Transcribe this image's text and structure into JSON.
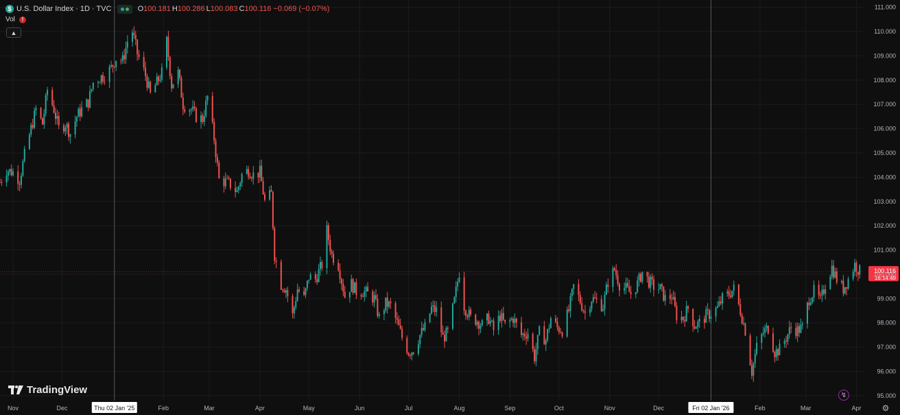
{
  "legend": {
    "symbol_icon": "dollar-sign-icon",
    "symbol_glyph": "$",
    "title": "U.S. Dollar Index · 1D · TVC",
    "open_key": "O",
    "open": "100.181",
    "high_key": "H",
    "high": "100.286",
    "low_key": "L",
    "low": "100.083",
    "close_key": "C",
    "close": "100.116",
    "change": "−0.069 (−0.07%)"
  },
  "volume": {
    "label": "Vol",
    "warning_icon": "warning-icon",
    "warning_glyph": "!"
  },
  "brand": {
    "name": "TradingView",
    "icon": "tradingview-logo-icon"
  },
  "price_tag": {
    "value": "100.116",
    "countdown": "16:14:49",
    "color": "#f23645"
  },
  "crosshair_labels": [
    "Thu 02 Jan '25",
    "Fri 02 Jan '26"
  ],
  "colors": {
    "up": "#26a69a",
    "down": "#ef5350",
    "background": "#0f0f0f",
    "grid": "#1c1c1c"
  },
  "chart_data": {
    "type": "candlestick",
    "symbol": "U.S. Dollar Index",
    "interval": "1D",
    "y_axis": {
      "range": [
        94.8,
        111.3
      ],
      "ticks": [
        "95.000",
        "96.000",
        "97.000",
        "98.000",
        "99.000",
        "100.000",
        "101.000",
        "102.000",
        "103.000",
        "104.000",
        "105.000",
        "106.000",
        "107.000",
        "108.000",
        "109.000",
        "110.000",
        "111.000"
      ]
    },
    "x_axis": {
      "start": "2024-10-24",
      "end": "2026-04-05",
      "ticks": [
        {
          "label": "Nov",
          "date": "2024-11-01"
        },
        {
          "label": "Dec",
          "date": "2024-12-01"
        },
        {
          "label": "Feb",
          "date": "2025-02-01"
        },
        {
          "label": "Mar",
          "date": "2025-03-01"
        },
        {
          "label": "Apr",
          "date": "2025-04-01"
        },
        {
          "label": "May",
          "date": "2025-05-01"
        },
        {
          "label": "Jun",
          "date": "2025-06-01"
        },
        {
          "label": "Jul",
          "date": "2025-07-01"
        },
        {
          "label": "Aug",
          "date": "2025-08-01"
        },
        {
          "label": "Sep",
          "date": "2025-09-01"
        },
        {
          "label": "Oct",
          "date": "2025-10-01"
        },
        {
          "label": "Nov",
          "date": "2025-11-01"
        },
        {
          "label": "Dec",
          "date": "2025-12-01"
        },
        {
          "label": "Feb",
          "date": "2026-02-01"
        },
        {
          "label": "Mar",
          "date": "2026-03-01"
        },
        {
          "label": "Apr",
          "date": "2026-04-01"
        }
      ]
    },
    "verticals": [
      "2025-01-02",
      "2026-01-02"
    ],
    "last_price": 100.116,
    "close_path": [
      [
        "2024-10-24",
        103.8
      ],
      [
        "2024-10-28",
        104.3
      ],
      [
        "2024-11-01",
        104.2
      ],
      [
        "2024-11-05",
        103.9
      ],
      [
        "2024-11-08",
        104.9
      ],
      [
        "2024-11-12",
        106.0
      ],
      [
        "2024-11-15",
        106.8
      ],
      [
        "2024-11-19",
        106.2
      ],
      [
        "2024-11-22",
        107.6
      ],
      [
        "2024-11-26",
        106.8
      ],
      [
        "2024-11-29",
        106.0
      ],
      [
        "2024-12-03",
        106.2
      ],
      [
        "2024-12-06",
        105.8
      ],
      [
        "2024-12-10",
        106.5
      ],
      [
        "2024-12-13",
        106.8
      ],
      [
        "2024-12-17",
        107.1
      ],
      [
        "2024-12-20",
        107.9
      ],
      [
        "2024-12-24",
        108.1
      ],
      [
        "2024-12-27",
        108.2
      ],
      [
        "2024-12-31",
        108.5
      ],
      [
        "2025-01-03",
        108.9
      ],
      [
        "2025-01-07",
        108.8
      ],
      [
        "2025-01-10",
        109.6
      ],
      [
        "2025-01-13",
        110.0
      ],
      [
        "2025-01-16",
        109.1
      ],
      [
        "2025-01-21",
        108.2
      ],
      [
        "2025-01-24",
        107.4
      ],
      [
        "2025-01-28",
        107.9
      ],
      [
        "2025-01-31",
        108.3
      ],
      [
        "2025-02-03",
        109.6
      ],
      [
        "2025-02-06",
        107.8
      ],
      [
        "2025-02-10",
        108.3
      ],
      [
        "2025-02-13",
        107.0
      ],
      [
        "2025-02-18",
        106.8
      ],
      [
        "2025-02-21",
        106.5
      ],
      [
        "2025-02-25",
        106.4
      ],
      [
        "2025-02-28",
        107.3
      ],
      [
        "2025-03-04",
        105.6
      ],
      [
        "2025-03-07",
        103.9
      ],
      [
        "2025-03-11",
        103.8
      ],
      [
        "2025-03-14",
        103.7
      ],
      [
        "2025-03-18",
        103.4
      ],
      [
        "2025-03-21",
        104.1
      ],
      [
        "2025-03-25",
        104.3
      ],
      [
        "2025-03-28",
        104.1
      ],
      [
        "2025-04-01",
        104.2
      ],
      [
        "2025-04-04",
        103.0
      ],
      [
        "2025-04-08",
        103.3
      ],
      [
        "2025-04-10",
        100.8
      ],
      [
        "2025-04-14",
        99.6
      ],
      [
        "2025-04-17",
        99.4
      ],
      [
        "2025-04-21",
        98.3
      ],
      [
        "2025-04-24",
        99.4
      ],
      [
        "2025-04-28",
        99.0
      ],
      [
        "2025-05-01",
        99.9
      ],
      [
        "2025-05-05",
        99.8
      ],
      [
        "2025-05-09",
        100.4
      ],
      [
        "2025-05-12",
        101.8
      ],
      [
        "2025-05-15",
        100.8
      ],
      [
        "2025-05-19",
        100.4
      ],
      [
        "2025-05-23",
        99.1
      ],
      [
        "2025-05-27",
        99.6
      ],
      [
        "2025-05-30",
        99.3
      ],
      [
        "2025-06-03",
        99.3
      ],
      [
        "2025-06-06",
        99.2
      ],
      [
        "2025-06-10",
        99.0
      ],
      [
        "2025-06-13",
        98.2
      ],
      [
        "2025-06-17",
        98.8
      ],
      [
        "2025-06-20",
        98.7
      ],
      [
        "2025-06-24",
        98.0
      ],
      [
        "2025-06-27",
        97.4
      ],
      [
        "2025-07-01",
        96.8
      ],
      [
        "2025-07-04",
        96.9
      ],
      [
        "2025-07-08",
        97.5
      ],
      [
        "2025-07-11",
        97.8
      ],
      [
        "2025-07-15",
        98.6
      ],
      [
        "2025-07-18",
        98.5
      ],
      [
        "2025-07-22",
        97.4
      ],
      [
        "2025-07-25",
        97.6
      ],
      [
        "2025-07-29",
        98.9
      ],
      [
        "2025-08-01",
        100.1
      ],
      [
        "2025-08-04",
        98.7
      ],
      [
        "2025-08-08",
        98.2
      ],
      [
        "2025-08-12",
        98.1
      ],
      [
        "2025-08-15",
        97.9
      ],
      [
        "2025-08-19",
        98.2
      ],
      [
        "2025-08-22",
        97.7
      ],
      [
        "2025-08-26",
        98.3
      ],
      [
        "2025-08-29",
        97.9
      ],
      [
        "2025-09-03",
        98.2
      ],
      [
        "2025-09-08",
        97.5
      ],
      [
        "2025-09-12",
        97.6
      ],
      [
        "2025-09-16",
        96.6
      ],
      [
        "2025-09-19",
        97.6
      ],
      [
        "2025-09-23",
        97.3
      ],
      [
        "2025-09-26",
        98.2
      ],
      [
        "2025-09-30",
        97.8
      ],
      [
        "2025-10-03",
        97.7
      ],
      [
        "2025-10-07",
        98.5
      ],
      [
        "2025-10-10",
        99.5
      ],
      [
        "2025-10-14",
        98.9
      ],
      [
        "2025-10-17",
        98.4
      ],
      [
        "2025-10-21",
        99.0
      ],
      [
        "2025-10-24",
        98.9
      ],
      [
        "2025-10-28",
        98.7
      ],
      [
        "2025-10-31",
        99.7
      ],
      [
        "2025-11-04",
        100.2
      ],
      [
        "2025-11-07",
        99.6
      ],
      [
        "2025-11-11",
        99.4
      ],
      [
        "2025-11-14",
        99.2
      ],
      [
        "2025-11-18",
        99.6
      ],
      [
        "2025-11-21",
        100.1
      ],
      [
        "2025-11-25",
        99.7
      ],
      [
        "2025-11-28",
        99.5
      ],
      [
        "2025-12-02",
        99.4
      ],
      [
        "2025-12-05",
        99.0
      ],
      [
        "2025-12-09",
        99.1
      ],
      [
        "2025-12-12",
        98.3
      ],
      [
        "2025-12-16",
        98.2
      ],
      [
        "2025-12-19",
        98.6
      ],
      [
        "2025-12-23",
        97.9
      ],
      [
        "2025-12-26",
        98.0
      ],
      [
        "2025-12-30",
        98.3
      ],
      [
        "2026-01-02",
        98.4
      ],
      [
        "2026-01-06",
        98.6
      ],
      [
        "2026-01-09",
        99.0
      ],
      [
        "2026-01-13",
        99.2
      ],
      [
        "2026-01-16",
        99.4
      ],
      [
        "2026-01-20",
        98.5
      ],
      [
        "2026-01-23",
        97.7
      ],
      [
        "2026-01-27",
        96.0
      ],
      [
        "2026-01-30",
        97.0
      ],
      [
        "2026-02-03",
        97.6
      ],
      [
        "2026-02-06",
        97.8
      ],
      [
        "2026-02-10",
        96.8
      ],
      [
        "2026-02-13",
        96.9
      ],
      [
        "2026-02-17",
        97.4
      ],
      [
        "2026-02-20",
        97.8
      ],
      [
        "2026-02-24",
        97.7
      ],
      [
        "2026-02-27",
        97.8
      ],
      [
        "2026-03-03",
        99.0
      ],
      [
        "2026-03-06",
        99.3
      ],
      [
        "2026-03-10",
        98.9
      ],
      [
        "2026-03-13",
        99.6
      ],
      [
        "2026-03-17",
        100.3
      ],
      [
        "2026-03-20",
        99.8
      ],
      [
        "2026-03-24",
        99.4
      ],
      [
        "2026-03-27",
        99.8
      ],
      [
        "2026-03-31",
        100.4
      ],
      [
        "2026-04-03",
        100.116
      ]
    ]
  }
}
